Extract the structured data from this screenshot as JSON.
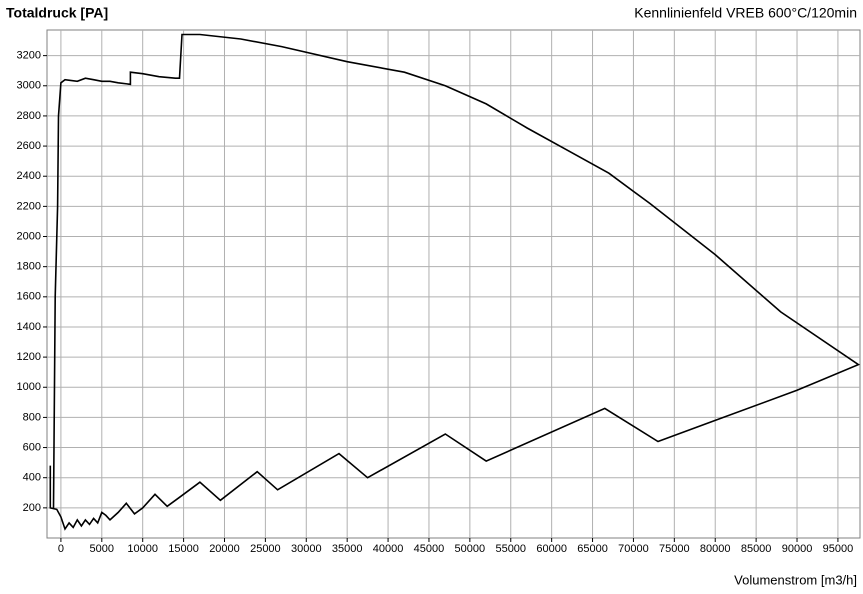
{
  "chart_data": {
    "type": "line",
    "title": "Totaldruck   [PA]",
    "subtitle": "Kennlinienfeld VREB  600°C/120min",
    "x_label": "Volumenstrom [m3/h]",
    "xlim": [
      -1700,
      97700
    ],
    "ylim": [
      0,
      3370
    ],
    "xticks": [
      0,
      5000,
      10000,
      15000,
      20000,
      25000,
      30000,
      35000,
      40000,
      45000,
      50000,
      55000,
      60000,
      65000,
      70000,
      75000,
      80000,
      85000,
      90000,
      95000
    ],
    "yticks": [
      200,
      400,
      600,
      800,
      1000,
      1200,
      1400,
      1600,
      1800,
      2000,
      2200,
      2400,
      2600,
      2800,
      3000,
      3200
    ],
    "grid": true,
    "series": [
      {
        "color": "#000000",
        "x": [
          -1300,
          -1300,
          -500,
          0,
          500,
          1000,
          1500,
          2000,
          2500,
          3000,
          3500,
          4000,
          4500,
          5000,
          5500,
          6000,
          7000,
          8000,
          9000,
          10000,
          11500,
          13000,
          14500,
          17000,
          19500,
          24000,
          26500,
          34000,
          37500,
          47000,
          52000,
          66500,
          73000,
          80000,
          90000,
          97500,
          88000,
          80000,
          72000,
          67000,
          62000,
          57000,
          52000,
          47000,
          42000,
          35000,
          27000,
          22000,
          17000,
          14800,
          14500,
          14000,
          12000,
          10000,
          8500,
          8500,
          7000,
          6000,
          5000,
          4000,
          3000,
          2000,
          500,
          0,
          -300,
          -400,
          -700,
          -900
        ],
        "y": [
          480,
          200,
          190,
          140,
          60,
          100,
          70,
          120,
          80,
          120,
          90,
          130,
          100,
          170,
          150,
          120,
          170,
          230,
          160,
          200,
          290,
          210,
          270,
          370,
          250,
          440,
          320,
          560,
          400,
          690,
          510,
          860,
          640,
          780,
          980,
          1150,
          1500,
          1880,
          2220,
          2420,
          2570,
          2720,
          2880,
          3000,
          3090,
          3160,
          3260,
          3310,
          3340,
          3340,
          3050,
          3050,
          3060,
          3080,
          3090,
          3010,
          3020,
          3030,
          3030,
          3040,
          3050,
          3030,
          3040,
          3020,
          2800,
          2200,
          1600,
          200
        ]
      }
    ]
  }
}
